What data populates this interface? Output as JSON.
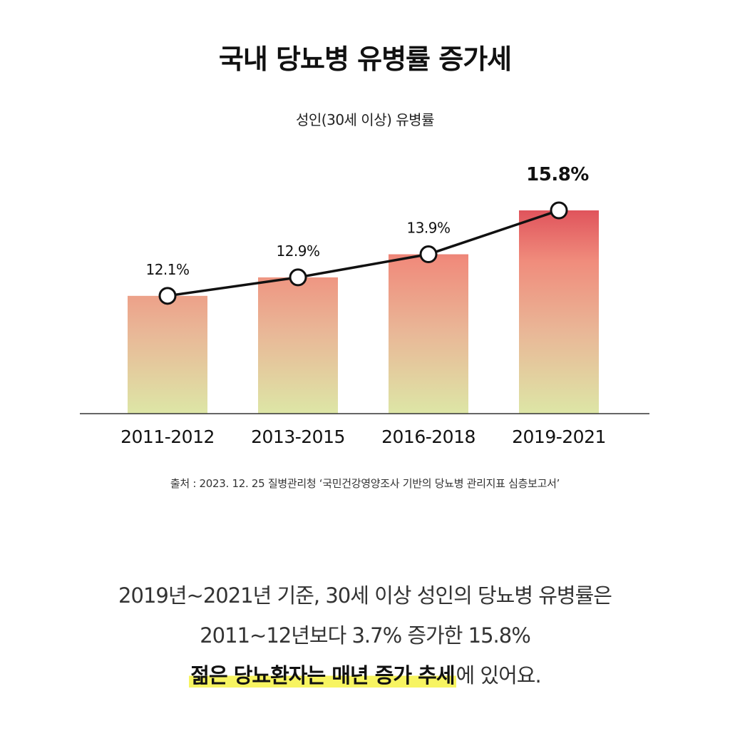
{
  "title": "국내 당뇨병 유병률 증가세",
  "chart_data": {
    "type": "bar",
    "subtitle": "성인(30세 이상) 유병률",
    "categories": [
      "2011-2012",
      "2013-2015",
      "2016-2018",
      "2019-2021"
    ],
    "values": [
      12.1,
      12.9,
      13.9,
      15.8
    ],
    "data_labels": [
      "12.1%",
      "12.9%",
      "13.9%",
      "15.8%"
    ],
    "overlay_line": true,
    "highlight_last": true,
    "ylim": [
      7.0,
      16.0
    ],
    "colors": {
      "bar_top": "#e0545c",
      "bar_mid": "#f08c7c",
      "bar_bottom": "#dde6a6",
      "line": "#111111"
    }
  },
  "source": "출처 : 2023. 12. 25 질병관리청 ‘국민건강영양조사 기반의 당뇨병 관리지표 심층보고서’",
  "summary": {
    "line1": "2019년~2021년 기준, 30세 이상 성인의 당뇨병 유병률은",
    "line2": "2011~12년보다 3.7% 증가한 15.8%",
    "line3_highlight": "젊은 당뇨환자는 매년 증가 추세",
    "line3_rest": "에 있어요."
  }
}
